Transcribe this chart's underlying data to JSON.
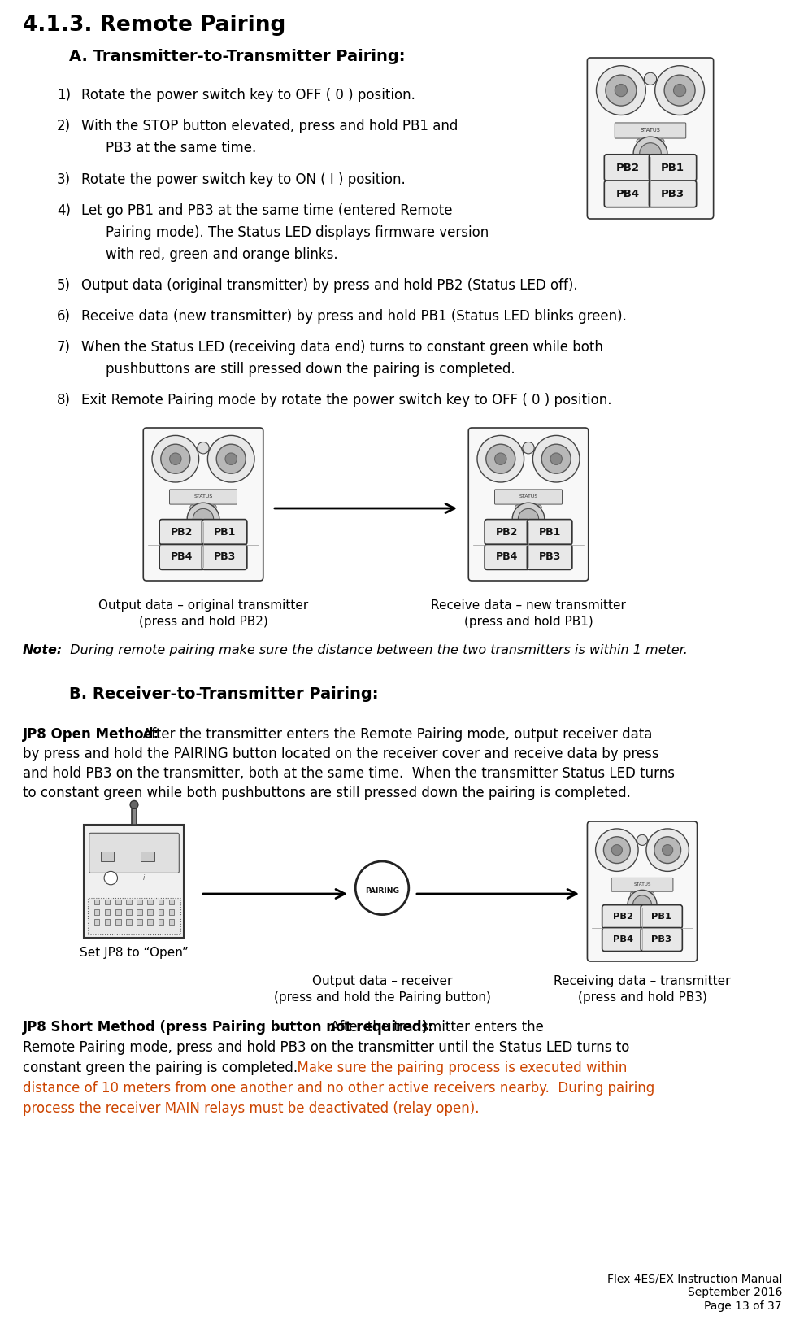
{
  "title": "4.1.3. Remote Pairing",
  "section_a_title": "A. Transmitter-to-Transmitter Pairing:",
  "step1": "Rotate the power switch key to OFF ( 0 ) position.",
  "step2a": "With the STOP button elevated, press and hold PB1 and",
  "step2b": "PB3 at the same time.",
  "step3": "Rotate the power switch key to ON ( I ) position.",
  "step4a": "Let go PB1 and PB3 at the same time (entered Remote",
  "step4b": "Pairing mode). The Status LED displays firmware version",
  "step4c": "with red, green and orange blinks.",
  "step5": "Output data (original transmitter) by press and hold PB2 (Status LED off).",
  "step6": "Receive data (new transmitter) by press and hold PB1 (Status LED blinks green).",
  "step7a": "When the Status LED (receiving data end) turns to constant green while both",
  "step7b": "pushbuttons are still pressed down the pairing is completed.",
  "step8": "Exit Remote Pairing mode by rotate the power switch key to OFF ( 0 ) position.",
  "caption_left1": "Output data – original transmitter",
  "caption_left2": "(press and hold PB2)",
  "caption_right1": "Receive data – new transmitter",
  "caption_right2": "(press and hold PB1)",
  "note_bold": "Note:",
  "note_italic": "  During remote pairing make sure the distance between the two transmitters is within 1 meter.",
  "section_b_title": "B. Receiver-to-Transmitter Pairing:",
  "jp8_open_bold": "JP8 Open Method:",
  "jp8_open_text1": "  After the transmitter enters the Remote Pairing mode, output receiver data",
  "jp8_open_text2": "by press and hold the PAIRING button located on the receiver cover and receive data by press",
  "jp8_open_text3": "and hold PB3 on the transmitter, both at the same time.  When the transmitter Status LED turns",
  "jp8_open_text4": "to constant green while both pushbuttons are still pressed down the pairing is completed.",
  "caption_b_left": "Set JP8 to “Open”",
  "caption_b_mid1": "Output data – receiver",
  "caption_b_mid2": "(press and hold the Pairing button)",
  "caption_b_right1": "Receiving data – transmitter",
  "caption_b_right2": "(press and hold PB3)",
  "jp8_short_bold": "JP8 Short Method (press Pairing button not required):",
  "jp8_short_text1": "  After the transmitter enters the",
  "jp8_short_text2": "Remote Pairing mode, press and hold PB3 on the transmitter until the Status LED turns to",
  "jp8_short_text3": "constant green the pairing is completed.",
  "jp8_short_highlight1": "  Make sure the pairing process is executed within",
  "jp8_short_highlight2": "distance of 10 meters from one another and no other active receivers nearby.  During pairing",
  "jp8_short_highlight3": "process the receiver MAIN relays must be deactivated (relay open).",
  "footer1": "Flex 4ES/EX Instruction Manual",
  "footer2": "September 2016",
  "footer3": "Page 13 of 37",
  "bg": "#ffffff",
  "black": "#000000",
  "orange": "#cc4400",
  "gray_light": "#f0f0f0",
  "gray_mid": "#cccccc",
  "gray_dark": "#888888"
}
